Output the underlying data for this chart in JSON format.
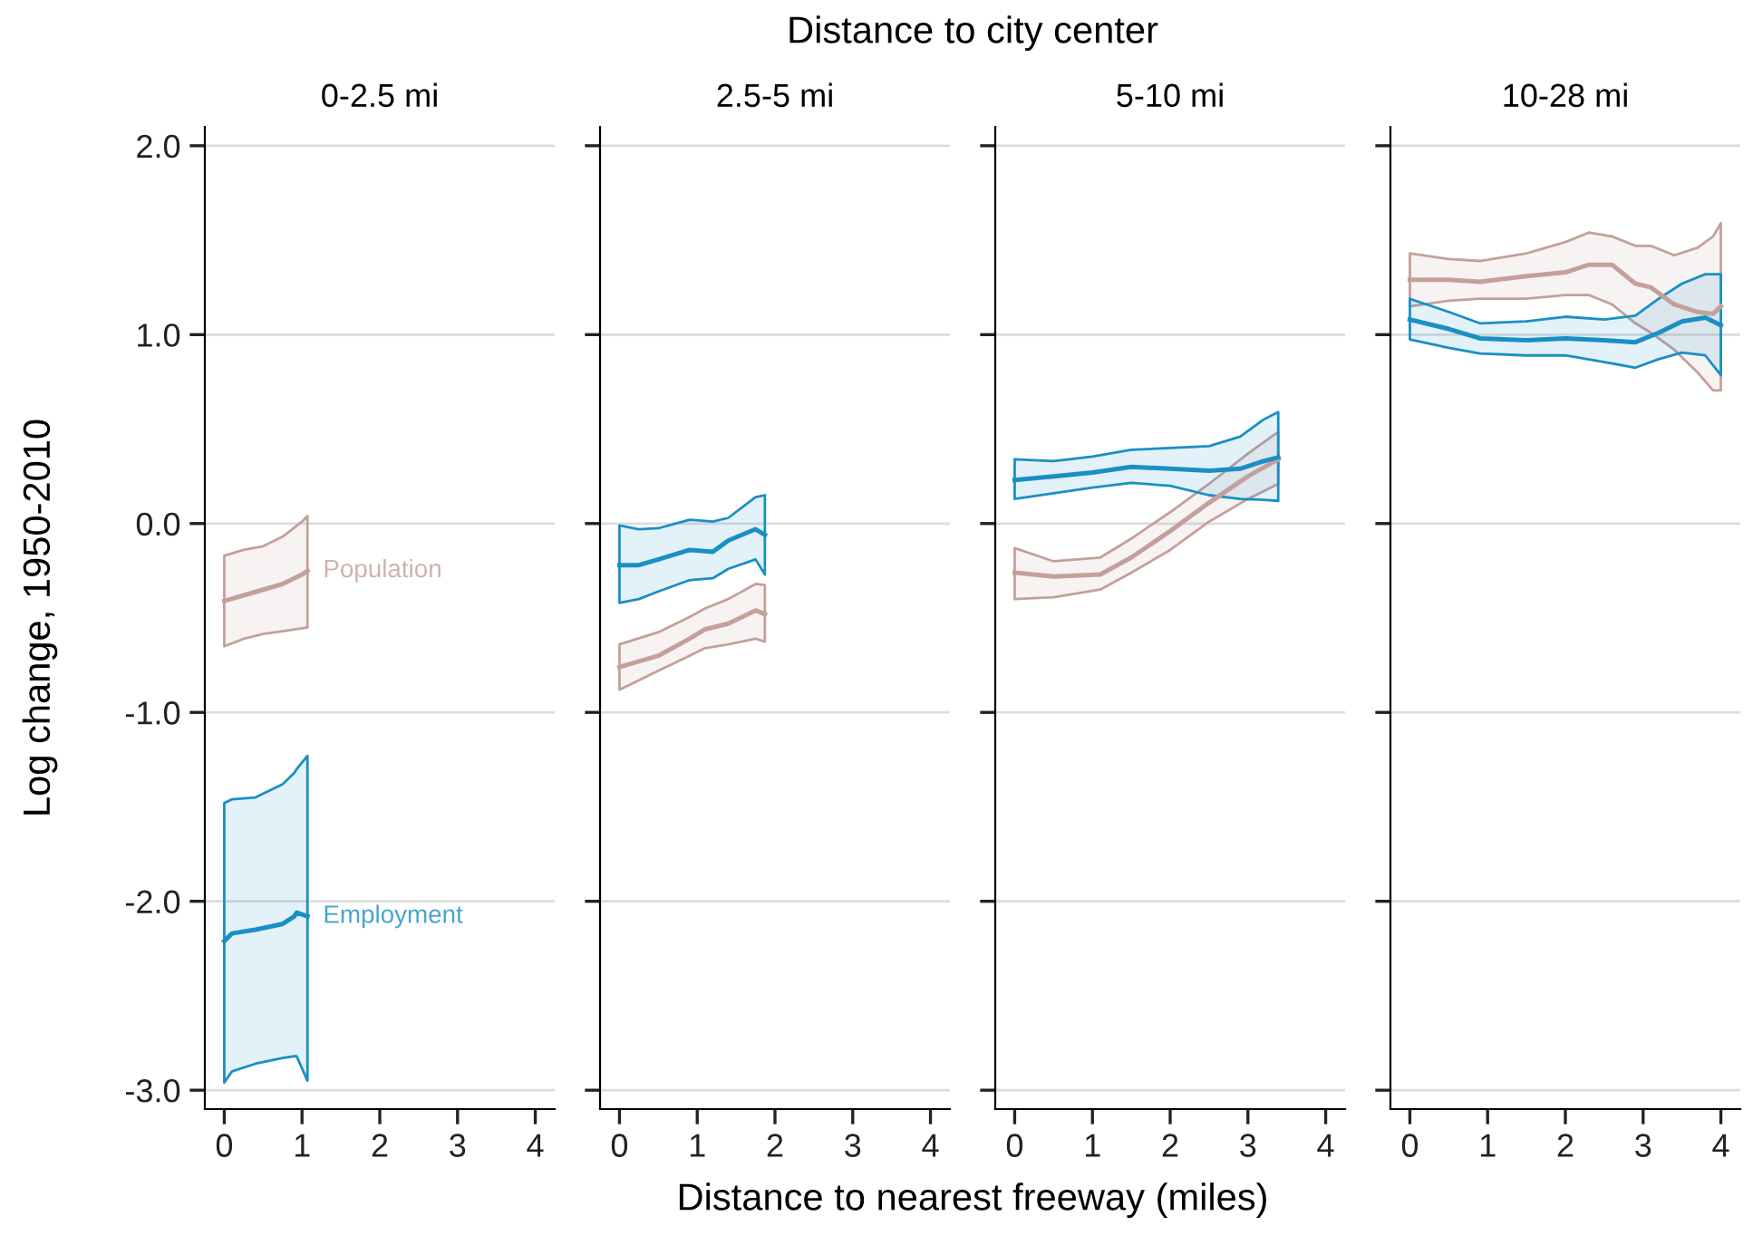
{
  "chart_data": [
    {
      "type": "line",
      "title": "0-2.5 mi",
      "ylabel": "Log change, 1950-2010",
      "xlabel": "Distance to nearest freeway (miles)",
      "annotations": [
        "Distance to city center"
      ],
      "xlim": [
        -0.25,
        4.25
      ],
      "xticks": [
        0,
        1,
        2,
        3,
        4
      ],
      "ylim": [
        -3.1,
        2.1
      ],
      "yticks": [
        {
          "value": 2,
          "label": "2.0"
        },
        {
          "value": 1,
          "label": "1.0"
        },
        {
          "value": 0,
          "label": "0.0"
        },
        {
          "value": -1,
          "label": "-1.0"
        },
        {
          "value": -2,
          "label": "-2.0"
        },
        {
          "value": -3,
          "label": "-3.0"
        }
      ],
      "grid": "y",
      "legend": false,
      "series": [
        {
          "name": "Population",
          "color": "#c4a09b",
          "x": [
            0,
            0.25,
            0.5,
            0.75,
            1.0,
            1.07
          ],
          "values": [
            -0.41,
            -0.38,
            -0.35,
            -0.32,
            -0.27,
            -0.25
          ],
          "lower": [
            -0.65,
            -0.61,
            -0.585,
            -0.57,
            -0.555,
            -0.55
          ],
          "upper": [
            -0.17,
            -0.14,
            -0.12,
            -0.07,
            0.01,
            0.04
          ]
        },
        {
          "name": "Employment",
          "color": "#1a8fc4",
          "x": [
            0,
            0.1,
            0.4,
            0.75,
            0.9,
            0.93,
            1.07
          ],
          "values": [
            -2.21,
            -2.17,
            -2.15,
            -2.12,
            -2.08,
            -2.06,
            -2.08
          ],
          "lower": [
            -2.96,
            -2.9,
            -2.86,
            -2.83,
            -2.82,
            -2.82,
            -2.95
          ],
          "upper": [
            -1.48,
            -1.46,
            -1.45,
            -1.38,
            -1.32,
            -1.3,
            -1.23
          ]
        }
      ]
    },
    {
      "type": "line",
      "title": "2.5-5 mi",
      "xlim": [
        -0.25,
        4.25
      ],
      "xticks": [
        0,
        1,
        2,
        3,
        4
      ],
      "ylim": [
        -3.1,
        2.1
      ],
      "yticks": [
        {
          "value": 2,
          "label": null
        },
        {
          "value": 1,
          "label": null
        },
        {
          "value": 0,
          "label": null
        },
        {
          "value": -1,
          "label": null
        },
        {
          "value": -2,
          "label": null
        },
        {
          "value": -3,
          "label": null
        }
      ],
      "grid": "y",
      "legend": false,
      "tick_labels": "x",
      "series": [
        {
          "color": "#c4a09b",
          "x": [
            0,
            0.5,
            0.9,
            1.1,
            1.4,
            1.75,
            1.87
          ],
          "values": [
            -0.76,
            -0.7,
            -0.61,
            -0.56,
            -0.53,
            -0.46,
            -0.48
          ],
          "lower": [
            -0.88,
            -0.78,
            -0.7,
            -0.66,
            -0.64,
            -0.61,
            -0.625
          ],
          "upper": [
            -0.64,
            -0.575,
            -0.495,
            -0.45,
            -0.4,
            -0.32,
            -0.325
          ]
        },
        {
          "color": "#1a8fc4",
          "x": [
            0,
            0.25,
            0.5,
            0.9,
            1.2,
            1.4,
            1.75,
            1.87
          ],
          "values": [
            -0.22,
            -0.22,
            -0.19,
            -0.14,
            -0.15,
            -0.09,
            -0.03,
            -0.06
          ],
          "lower": [
            -0.42,
            -0.4,
            -0.36,
            -0.3,
            -0.29,
            -0.24,
            -0.19,
            -0.27
          ],
          "upper": [
            -0.01,
            -0.03,
            -0.025,
            0.02,
            0.01,
            0.03,
            0.14,
            0.15
          ]
        }
      ]
    },
    {
      "type": "line",
      "title": "5-10 mi",
      "xlim": [
        -0.25,
        4.25
      ],
      "xticks": [
        0,
        1,
        2,
        3,
        4
      ],
      "ylim": [
        -3.1,
        2.1
      ],
      "yticks": [
        {
          "value": 2,
          "label": null
        },
        {
          "value": 1,
          "label": null
        },
        {
          "value": 0,
          "label": null
        },
        {
          "value": -1,
          "label": null
        },
        {
          "value": -2,
          "label": null
        },
        {
          "value": -3,
          "label": null
        }
      ],
      "grid": "y",
      "legend": false,
      "tick_labels": "x",
      "series": [
        {
          "color": "#c4a09b",
          "x": [
            0,
            0.5,
            1.1,
            1.5,
            2.0,
            2.5,
            3.0,
            3.39
          ],
          "values": [
            -0.26,
            -0.28,
            -0.27,
            -0.18,
            -0.04,
            0.11,
            0.25,
            0.34
          ],
          "lower": [
            -0.4,
            -0.39,
            -0.35,
            -0.26,
            -0.14,
            0.01,
            0.13,
            0.21
          ],
          "upper": [
            -0.13,
            -0.2,
            -0.18,
            -0.08,
            0.06,
            0.21,
            0.37,
            0.485
          ]
        },
        {
          "color": "#1a8fc4",
          "x": [
            0,
            0.5,
            1.0,
            1.5,
            2.0,
            2.5,
            2.9,
            3.2,
            3.39
          ],
          "values": [
            0.23,
            0.25,
            0.27,
            0.3,
            0.29,
            0.28,
            0.29,
            0.33,
            0.35
          ],
          "lower": [
            0.13,
            0.16,
            0.19,
            0.215,
            0.2,
            0.15,
            0.13,
            0.125,
            0.12
          ],
          "upper": [
            0.34,
            0.33,
            0.355,
            0.39,
            0.4,
            0.41,
            0.46,
            0.55,
            0.59
          ]
        }
      ]
    },
    {
      "type": "line",
      "title": "10-28 mi",
      "xlim": [
        -0.25,
        4.25
      ],
      "xticks": [
        0,
        1,
        2,
        3,
        4
      ],
      "ylim": [
        -3.1,
        2.1
      ],
      "yticks": [
        {
          "value": 2,
          "label": null
        },
        {
          "value": 1,
          "label": null
        },
        {
          "value": 0,
          "label": null
        },
        {
          "value": -1,
          "label": null
        },
        {
          "value": -2,
          "label": null
        },
        {
          "value": -3,
          "label": null
        }
      ],
      "grid": "y",
      "legend": false,
      "tick_labels": "x",
      "series": [
        {
          "color": "#c4a09b",
          "x": [
            0,
            0.5,
            0.9,
            1.5,
            2.0,
            2.3,
            2.6,
            2.9,
            3.1,
            3.4,
            3.7,
            3.9,
            4.0
          ],
          "values": [
            1.29,
            1.29,
            1.28,
            1.31,
            1.33,
            1.37,
            1.37,
            1.27,
            1.25,
            1.16,
            1.12,
            1.11,
            1.15
          ],
          "lower": [
            1.15,
            1.18,
            1.19,
            1.19,
            1.21,
            1.21,
            1.16,
            1.06,
            1.01,
            0.92,
            0.8,
            0.705,
            0.705
          ],
          "upper": [
            1.43,
            1.4,
            1.39,
            1.43,
            1.49,
            1.54,
            1.52,
            1.47,
            1.47,
            1.42,
            1.46,
            1.52,
            1.59
          ]
        },
        {
          "color": "#1a8fc4",
          "x": [
            0,
            0.5,
            0.9,
            1.5,
            2.0,
            2.5,
            2.9,
            3.2,
            3.5,
            3.8,
            4.0
          ],
          "values": [
            1.08,
            1.03,
            0.98,
            0.97,
            0.98,
            0.97,
            0.96,
            1.01,
            1.07,
            1.09,
            1.05
          ],
          "lower": [
            0.975,
            0.93,
            0.9,
            0.89,
            0.89,
            0.855,
            0.825,
            0.87,
            0.905,
            0.89,
            0.785
          ],
          "upper": [
            1.19,
            1.12,
            1.06,
            1.07,
            1.095,
            1.08,
            1.1,
            1.19,
            1.27,
            1.32,
            1.32
          ]
        }
      ]
    }
  ]
}
